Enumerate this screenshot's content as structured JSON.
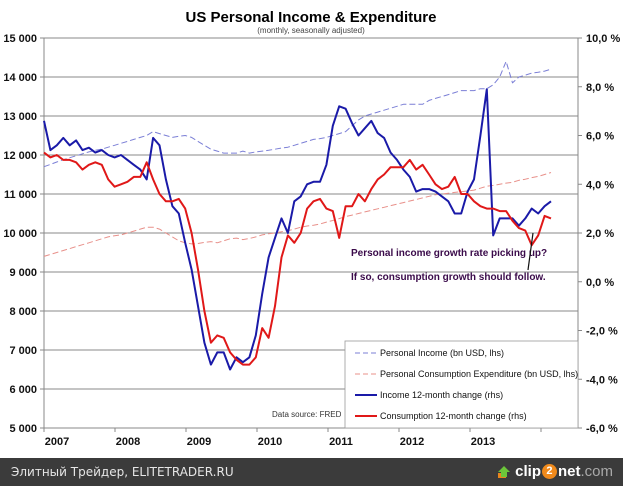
{
  "chart_data": {
    "type": "line",
    "title": "US Personal Income & Expenditure",
    "subtitle": "(monthly, seasonally adjusted)",
    "x_start": "2007-01",
    "x_labels": [
      "2007",
      "2008",
      "2009",
      "2010",
      "2011",
      "2012",
      "2013"
    ],
    "left_axis": {
      "ylim": [
        5000,
        15000
      ],
      "ticks": [
        "5 000",
        "6 000",
        "7 000",
        "8 000",
        "9 000",
        "10 000",
        "11 000",
        "12 000",
        "13 000",
        "14 000",
        "15 000"
      ],
      "tick_values": [
        5000,
        6000,
        7000,
        8000,
        9000,
        10000,
        11000,
        12000,
        13000,
        14000,
        15000
      ]
    },
    "right_axis": {
      "ylim": [
        -6,
        10
      ],
      "ticks": [
        "-6,0 %",
        "-4,0 %",
        "-2,0 %",
        "0,0 %",
        "2,0 %",
        "4,0 %",
        "6,0 %",
        "8,0 %",
        "10,0 %"
      ],
      "tick_values": [
        -6,
        -4,
        -2,
        0,
        2,
        4,
        6,
        8,
        10
      ]
    },
    "grid": true,
    "legend_position": "bottom-right",
    "series": [
      {
        "name": "Personal Income (bn USD, lhs)",
        "axis": "left",
        "style": "dashed",
        "color": "#7b7fd6",
        "values": [
          11700,
          11760,
          11820,
          11880,
          11930,
          11980,
          12030,
          12080,
          12120,
          12150,
          12200,
          12250,
          12300,
          12350,
          12400,
          12450,
          12500,
          12600,
          12550,
          12500,
          12450,
          12480,
          12500,
          12450,
          12350,
          12250,
          12150,
          12100,
          12050,
          12050,
          12050,
          12100,
          12050,
          12080,
          12100,
          12120,
          12150,
          12180,
          12200,
          12250,
          12300,
          12350,
          12400,
          12420,
          12450,
          12500,
          12550,
          12600,
          12750,
          12900,
          13000,
          13050,
          13100,
          13150,
          13200,
          13250,
          13300,
          13300,
          13300,
          13300,
          13400,
          13450,
          13500,
          13550,
          13600,
          13650,
          13650,
          13650,
          13700,
          13700,
          13800,
          14000,
          14400,
          13850,
          14000,
          14050,
          14100,
          14120,
          14150,
          14200
        ]
      },
      {
        "name": "Personal Consumption Expenditure (bn USD, lhs)",
        "axis": "left",
        "style": "dashed",
        "color": "#e8908a",
        "values": [
          9400,
          9450,
          9500,
          9550,
          9600,
          9650,
          9700,
          9750,
          9800,
          9850,
          9900,
          9930,
          9950,
          10000,
          10050,
          10100,
          10150,
          10150,
          10100,
          10000,
          9900,
          9800,
          9750,
          9720,
          9730,
          9760,
          9780,
          9750,
          9800,
          9850,
          9870,
          9830,
          9860,
          9900,
          9950,
          9980,
          10000,
          10030,
          10060,
          10100,
          10150,
          10180,
          10200,
          10230,
          10280,
          10320,
          10370,
          10420,
          10460,
          10500,
          10540,
          10580,
          10620,
          10660,
          10700,
          10740,
          10780,
          10820,
          10860,
          10900,
          10940,
          10980,
          11000,
          11020,
          11040,
          11060,
          11080,
          11100,
          11150,
          11200,
          11220,
          11250,
          11280,
          11300,
          11350,
          11380,
          11420,
          11450,
          11500,
          11550
        ]
      },
      {
        "name": "Income 12-month change (rhs)",
        "axis": "right",
        "style": "solid",
        "color": "#1a1aa8",
        "values": [
          6.6,
          5.4,
          5.6,
          5.9,
          5.6,
          5.8,
          5.4,
          5.5,
          5.3,
          5.4,
          5.2,
          5.1,
          5.2,
          5.0,
          4.8,
          4.6,
          4.2,
          5.9,
          5.6,
          4.2,
          3.1,
          2.8,
          1.6,
          0.5,
          -1.0,
          -2.5,
          -3.4,
          -2.9,
          -2.9,
          -3.6,
          -3.1,
          -3.3,
          -3.1,
          -2.2,
          -0.5,
          1.0,
          1.8,
          2.6,
          2.0,
          3.3,
          3.5,
          4.0,
          4.1,
          4.1,
          4.8,
          6.4,
          7.2,
          7.1,
          6.5,
          6.0,
          6.3,
          6.6,
          6.1,
          5.9,
          5.3,
          5.0,
          4.6,
          4.3,
          3.7,
          3.8,
          3.8,
          3.7,
          3.5,
          3.3,
          2.8,
          2.8,
          3.7,
          4.2,
          6.0,
          7.9,
          1.9,
          2.6,
          2.6,
          2.6,
          2.3,
          2.6,
          3.0,
          2.8,
          3.1,
          3.3
        ]
      },
      {
        "name": "Consumption 12-month change (rhs)",
        "axis": "right",
        "style": "solid",
        "color": "#e01818",
        "values": [
          5.3,
          5.1,
          5.2,
          5.0,
          5.0,
          4.9,
          4.6,
          4.8,
          4.9,
          4.8,
          4.2,
          3.9,
          4.0,
          4.1,
          4.3,
          4.3,
          4.9,
          4.2,
          3.6,
          3.3,
          3.3,
          3.4,
          3.0,
          2.0,
          0.5,
          -1.2,
          -2.5,
          -2.2,
          -2.3,
          -2.9,
          -3.2,
          -3.4,
          -3.4,
          -3.1,
          -1.9,
          -2.3,
          -1.0,
          1.0,
          1.9,
          1.6,
          2.0,
          3.0,
          3.3,
          3.4,
          3.0,
          2.9,
          1.8,
          3.1,
          3.1,
          3.6,
          3.3,
          3.8,
          4.2,
          4.4,
          4.7,
          4.7,
          4.7,
          5.0,
          4.6,
          4.8,
          4.4,
          4.0,
          3.8,
          3.9,
          4.3,
          3.6,
          3.6,
          3.3,
          3.1,
          3.0,
          3.0,
          2.9,
          2.9,
          2.5,
          2.2,
          2.1,
          1.5,
          1.9,
          2.7,
          2.6
        ]
      }
    ],
    "annotations": [
      "Personal income growth rate picking up?",
      "If so, consumption growth should follow."
    ],
    "source_note": "Data source: FRED"
  },
  "footer": {
    "left_text": "Элитный Трейдер, ELITETRADER.RU",
    "brand_a": "clip",
    "brand_two": "2",
    "brand_b": "net",
    "brand_c": ".com"
  }
}
